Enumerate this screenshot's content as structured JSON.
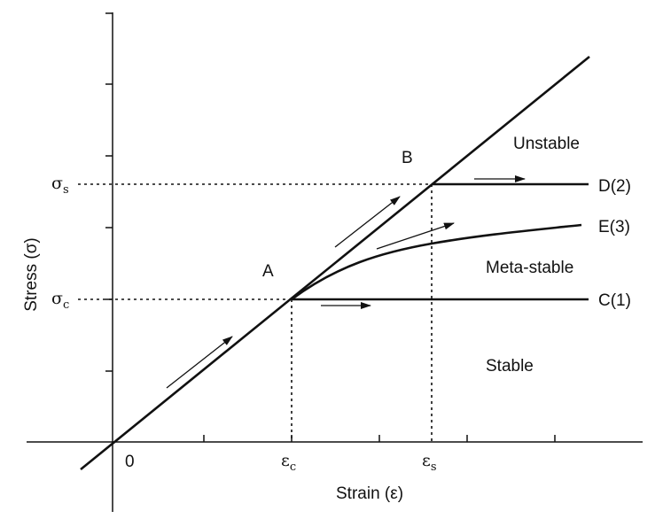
{
  "labels": {
    "point_a": "A",
    "point_b": "B",
    "origin": "0",
    "curve_c": "C(1)",
    "curve_d": "D(2)",
    "curve_e": "E(3)",
    "region_unstable": "Unstable",
    "region_metastable": "Meta-stable",
    "region_stable": "Stable",
    "x_axis_title": "Strain (ε)",
    "y_axis_title": "Stress (σ)"
  },
  "symbols": {
    "sigma_s": {
      "base": "σ",
      "sub": "s"
    },
    "sigma_c": {
      "base": "σ",
      "sub": "c"
    },
    "eps_c": {
      "base": "ε",
      "sub": "c"
    },
    "eps_s": {
      "base": "ε",
      "sub": "s"
    }
  }
}
